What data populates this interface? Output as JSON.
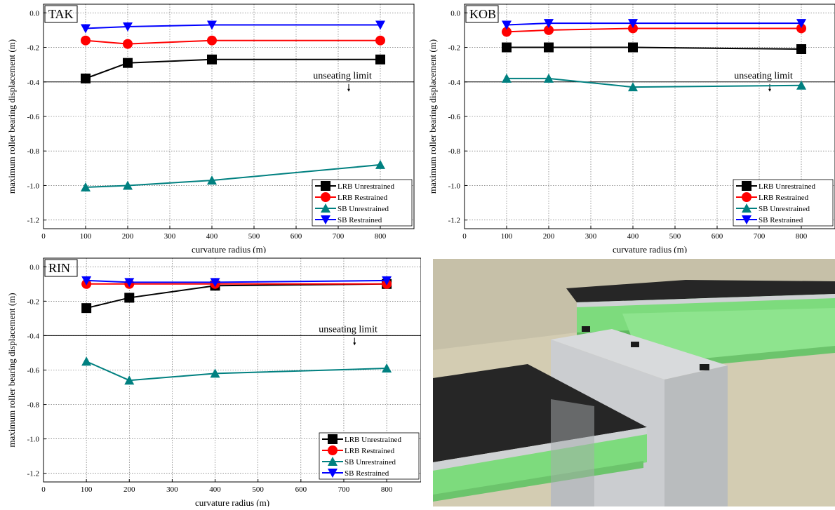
{
  "page": {
    "background": "#ffffff"
  },
  "colors": {
    "LRB Unrestrained": "#000000",
    "LRB Restrained": "#ff0000",
    "SB Unrestrained": "#008080",
    "SB Restrained": "#0000ff"
  },
  "chart_data": [
    {
      "type": "line",
      "panel_label": "TAK",
      "xlabel": "curvature radius (m)",
      "ylabel": "maximum roller bearing displacement (m)",
      "xlim": [
        0,
        880
      ],
      "ylim": [
        -1.25,
        0.05
      ],
      "xticks": [
        0,
        100,
        200,
        300,
        400,
        500,
        600,
        700,
        800
      ],
      "yticks": [
        0.0,
        -0.2,
        -0.4,
        -0.6,
        -0.8,
        -1.0,
        -1.2
      ],
      "grid": true,
      "legend_position": "bottom-right",
      "reference_line": {
        "y": -0.4,
        "label": "unseating limit"
      },
      "x": [
        100,
        200,
        400,
        800
      ],
      "series": [
        {
          "name": "LRB Unrestrained",
          "marker": "square",
          "color": "#000000",
          "values": [
            -0.38,
            -0.29,
            -0.27,
            -0.27
          ]
        },
        {
          "name": "LRB Restrained",
          "marker": "circle",
          "color": "#ff0000",
          "values": [
            -0.16,
            -0.18,
            -0.16,
            -0.16
          ]
        },
        {
          "name": "SB Unrestrained",
          "marker": "triangle-up",
          "color": "#008080",
          "values": [
            -1.01,
            -1.0,
            -0.97,
            -0.88
          ]
        },
        {
          "name": "SB Restrained",
          "marker": "triangle-down",
          "color": "#0000ff",
          "values": [
            -0.09,
            -0.08,
            -0.07,
            -0.07
          ]
        }
      ]
    },
    {
      "type": "line",
      "panel_label": "KOB",
      "xlabel": "curvature radius (m)",
      "ylabel": "maximum roller bearing displacement (m)",
      "xlim": [
        0,
        880
      ],
      "ylim": [
        -1.25,
        0.05
      ],
      "xticks": [
        0,
        100,
        200,
        300,
        400,
        500,
        600,
        700,
        800
      ],
      "yticks": [
        0.0,
        -0.2,
        -0.4,
        -0.6,
        -0.8,
        -1.0,
        -1.2
      ],
      "grid": true,
      "legend_position": "bottom-right",
      "reference_line": {
        "y": -0.4,
        "label": "unseating limit"
      },
      "x": [
        100,
        200,
        400,
        800
      ],
      "series": [
        {
          "name": "LRB Unrestrained",
          "marker": "square",
          "color": "#000000",
          "values": [
            -0.2,
            -0.2,
            -0.2,
            -0.21
          ]
        },
        {
          "name": "LRB Restrained",
          "marker": "circle",
          "color": "#ff0000",
          "values": [
            -0.11,
            -0.1,
            -0.09,
            -0.09
          ]
        },
        {
          "name": "SB Unrestrained",
          "marker": "triangle-up",
          "color": "#008080",
          "values": [
            -0.38,
            -0.38,
            -0.43,
            -0.42
          ]
        },
        {
          "name": "SB Restrained",
          "marker": "triangle-down",
          "color": "#0000ff",
          "values": [
            -0.07,
            -0.06,
            -0.06,
            -0.06
          ]
        }
      ]
    },
    {
      "type": "line",
      "panel_label": "RIN",
      "xlabel": "curvature radius (m)",
      "ylabel": "maximum roller bearing displacement (m)",
      "xlim": [
        0,
        880
      ],
      "ylim": [
        -1.25,
        0.05
      ],
      "xticks": [
        0,
        100,
        200,
        300,
        400,
        500,
        600,
        700,
        800
      ],
      "yticks": [
        0.0,
        -0.2,
        -0.4,
        -0.6,
        -0.8,
        -1.0,
        -1.2
      ],
      "grid": true,
      "legend_position": "bottom-right",
      "reference_line": {
        "y": -0.4,
        "label": "unseating limit"
      },
      "x": [
        100,
        200,
        400,
        800
      ],
      "series": [
        {
          "name": "LRB Unrestrained",
          "marker": "square",
          "color": "#000000",
          "values": [
            -0.24,
            -0.18,
            -0.11,
            -0.1
          ]
        },
        {
          "name": "LRB Restrained",
          "marker": "circle",
          "color": "#ff0000",
          "values": [
            -0.1,
            -0.1,
            -0.1,
            -0.1
          ]
        },
        {
          "name": "SB Unrestrained",
          "marker": "triangle-up",
          "color": "#008080",
          "values": [
            -0.55,
            -0.66,
            -0.62,
            -0.59
          ]
        },
        {
          "name": "SB Restrained",
          "marker": "triangle-down",
          "color": "#0000ff",
          "values": [
            -0.08,
            -0.09,
            -0.09,
            -0.08
          ]
        }
      ]
    }
  ],
  "illustration": {
    "deck_color": "#333333",
    "girder_color": "#7ddb7d",
    "pier_color": "#c9ccce",
    "background_color": "#d3ccb2"
  }
}
